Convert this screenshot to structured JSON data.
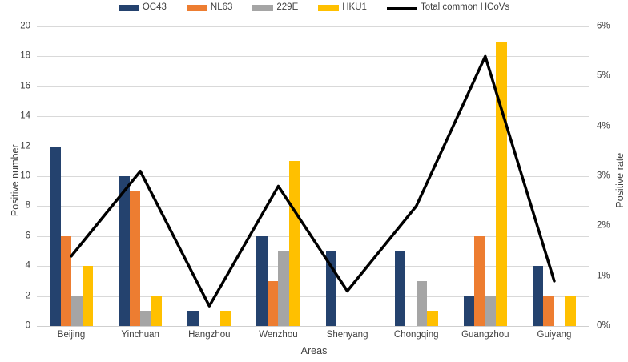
{
  "chart_data": {
    "type": "bar",
    "subtype": "grouped-bar-with-line-overlay",
    "title": "",
    "categories": [
      "Beijing",
      "Yinchuan",
      "Hangzhou",
      "Wenzhou",
      "Shenyang",
      "Chongqing",
      "Guangzhou",
      "Guiyang"
    ],
    "series": [
      {
        "name": "OC43",
        "type": "bar",
        "color": "#24426E",
        "axis": "left",
        "values": [
          12,
          10,
          1,
          6,
          5,
          5,
          2,
          4
        ]
      },
      {
        "name": "NL63",
        "type": "bar",
        "color": "#ED7D31",
        "axis": "left",
        "values": [
          6,
          9,
          0,
          3,
          0,
          0,
          6,
          2
        ]
      },
      {
        "name": "229E",
        "type": "bar",
        "color": "#A5A5A5",
        "axis": "left",
        "values": [
          2,
          1,
          0,
          5,
          0,
          3,
          2,
          0
        ]
      },
      {
        "name": "HKU1",
        "type": "bar",
        "color": "#FFC000",
        "axis": "left",
        "values": [
          4,
          2,
          1,
          11,
          0,
          1,
          19,
          2
        ]
      },
      {
        "name": "Total common HCoVs",
        "type": "line",
        "color": "#000000",
        "axis": "right",
        "values_percent": [
          1.4,
          3.1,
          0.4,
          2.8,
          0.7,
          2.4,
          5.4,
          0.9
        ]
      }
    ],
    "left_axis": {
      "label": "Positive number",
      "min": 0,
      "max": 20,
      "step": 2,
      "tick_labels": [
        "0",
        "2",
        "4",
        "6",
        "8",
        "10",
        "12",
        "14",
        "16",
        "18",
        "20"
      ]
    },
    "right_axis": {
      "label": "Positive rate",
      "min": 0,
      "max": 6,
      "step": 1,
      "tick_labels": [
        "0%",
        "1%",
        "2%",
        "3%",
        "4%",
        "5%",
        "6%"
      ]
    },
    "x_axis": {
      "label": "Areas"
    },
    "grid": true,
    "legend_position": "top",
    "colors": {
      "gridline": "#D9D9D9",
      "axis_line": "#CFCFCF",
      "text": "#404040",
      "background": "#FFFFFF"
    }
  }
}
